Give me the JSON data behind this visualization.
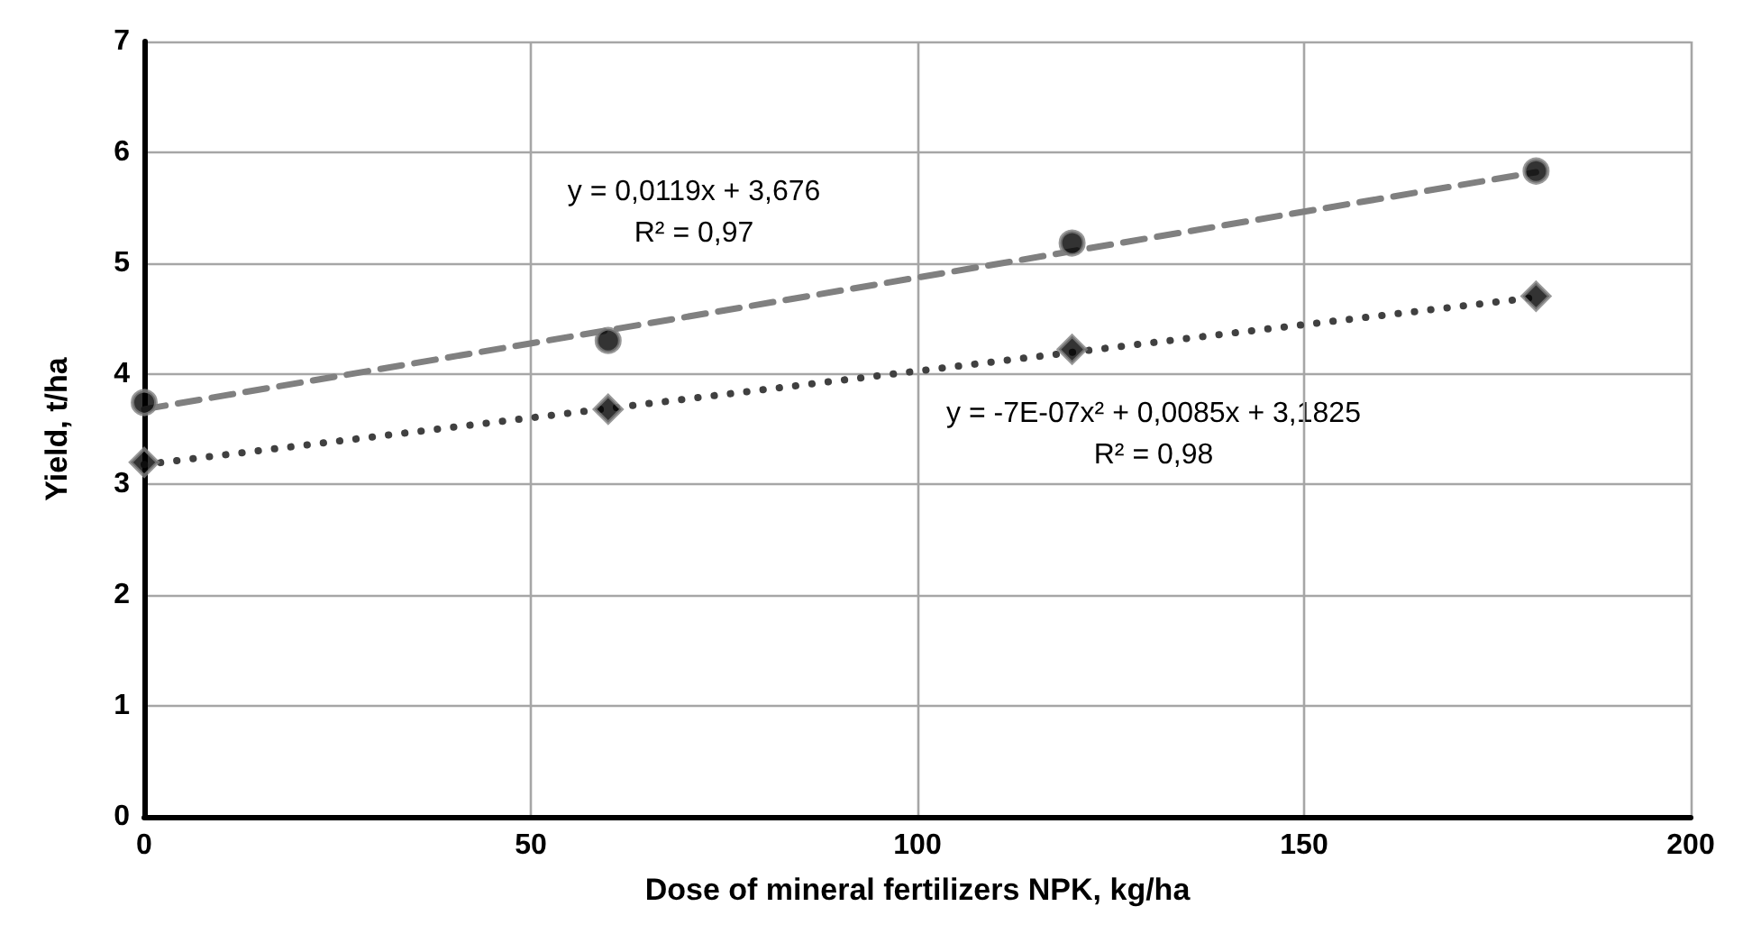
{
  "chart_data": {
    "type": "scatter",
    "xlabel": "Dose of mineral fertilizers NPK, kg/ha",
    "ylabel": "Yield, t/ha",
    "xlim": [
      0,
      200
    ],
    "xticks": [
      0,
      50,
      100,
      150,
      200
    ],
    "ylim": [
      0,
      7
    ],
    "yticks": [
      0,
      1,
      2,
      3,
      4,
      5,
      6,
      7
    ],
    "grid": true,
    "annotations": [
      "y = 0,0119x + 3,676\nR² = 0,97",
      "y = -7E-07x² + 0,0085x + 3,1825\nR² = 0,98"
    ],
    "series": [
      {
        "color": "#000000",
        "marker": "circle",
        "x": [
          0,
          60,
          120,
          180
        ],
        "values": [
          3.74,
          4.3,
          5.18,
          5.83
        ]
      },
      {
        "color": "#000000",
        "marker": "diamond",
        "x": [
          0,
          60,
          120,
          180
        ],
        "values": [
          3.2,
          3.68,
          4.22,
          4.7
        ]
      },
      {
        "type": "line",
        "color": "#808080",
        "marker": "none",
        "line_style": "dashed",
        "x": [
          0,
          180
        ],
        "values": [
          3.68,
          5.82
        ]
      },
      {
        "type": "line",
        "color": "#404040",
        "marker": "none",
        "line_style": "dotted",
        "x": [
          0,
          45,
          90,
          135,
          180
        ],
        "values": [
          3.18,
          3.56,
          3.94,
          4.32,
          4.69
        ]
      }
    ]
  }
}
